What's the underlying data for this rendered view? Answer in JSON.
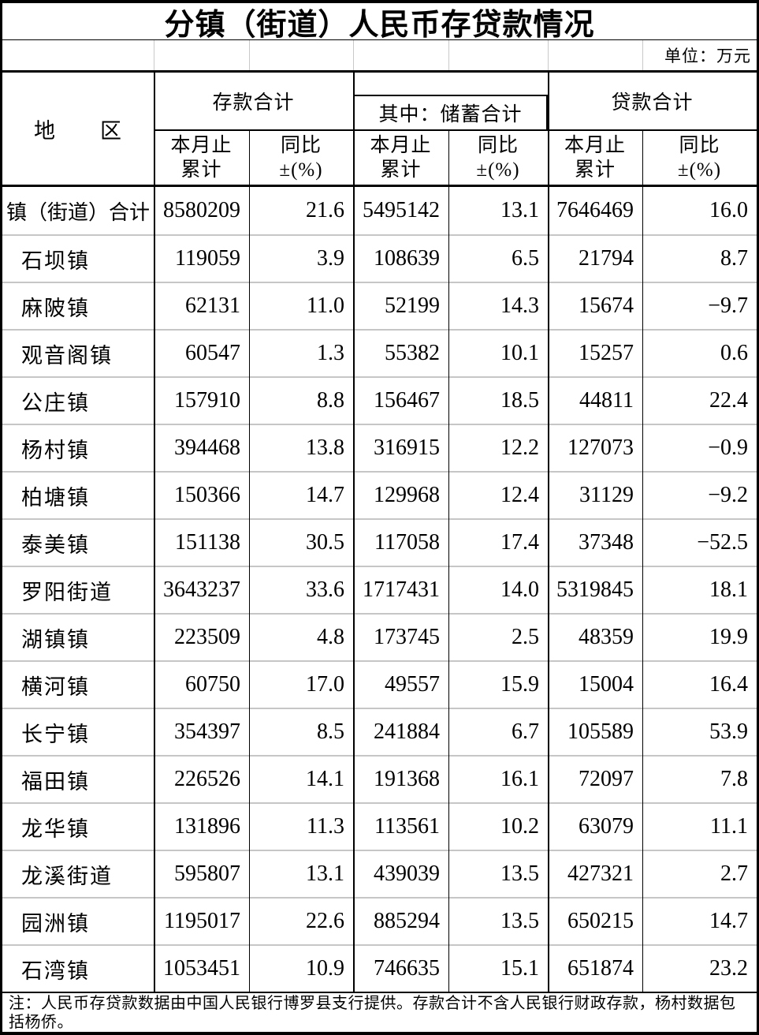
{
  "title": "分镇（街道）人民币存贷款情况",
  "unit_label": "单位：万元",
  "header": {
    "region_label": "地　　区",
    "groups": {
      "deposit": "存款合计",
      "savings": "其中：储蓄合计",
      "loan": "贷款合计"
    },
    "subcol": {
      "total_line1": "本月止",
      "total_line2": "累计",
      "yoy_line1": "同比",
      "yoy_line2": "±(%)"
    }
  },
  "rows": [
    {
      "region": "镇（街道）合计",
      "values": [
        "8580209",
        "21.6",
        "5495142",
        "13.1",
        "7646469",
        "16.0"
      ]
    },
    {
      "region": "石坝镇",
      "values": [
        "119059",
        "3.9",
        "108639",
        "6.5",
        "21794",
        "8.7"
      ]
    },
    {
      "region": "麻陂镇",
      "values": [
        "62131",
        "11.0",
        "52199",
        "14.3",
        "15674",
        "−9.7"
      ]
    },
    {
      "region": "观音阁镇",
      "values": [
        "60547",
        "1.3",
        "55382",
        "10.1",
        "15257",
        "0.6"
      ]
    },
    {
      "region": "公庄镇",
      "values": [
        "157910",
        "8.8",
        "156467",
        "18.5",
        "44811",
        "22.4"
      ]
    },
    {
      "region": "杨村镇",
      "values": [
        "394468",
        "13.8",
        "316915",
        "12.2",
        "127073",
        "−0.9"
      ]
    },
    {
      "region": "柏塘镇",
      "values": [
        "150366",
        "14.7",
        "129968",
        "12.4",
        "31129",
        "−9.2"
      ]
    },
    {
      "region": "泰美镇",
      "values": [
        "151138",
        "30.5",
        "117058",
        "17.4",
        "37348",
        "−52.5"
      ]
    },
    {
      "region": "罗阳街道",
      "values": [
        "3643237",
        "33.6",
        "1717431",
        "14.0",
        "5319845",
        "18.1"
      ]
    },
    {
      "region": "湖镇镇",
      "values": [
        "223509",
        "4.8",
        "173745",
        "2.5",
        "48359",
        "19.9"
      ]
    },
    {
      "region": "横河镇",
      "values": [
        "60750",
        "17.0",
        "49557",
        "15.9",
        "15004",
        "16.4"
      ]
    },
    {
      "region": "长宁镇",
      "values": [
        "354397",
        "8.5",
        "241884",
        "6.7",
        "105589",
        "53.9"
      ]
    },
    {
      "region": "福田镇",
      "values": [
        "226526",
        "14.1",
        "191368",
        "16.1",
        "72097",
        "7.8"
      ]
    },
    {
      "region": "龙华镇",
      "values": [
        "131896",
        "11.3",
        "113561",
        "10.2",
        "63079",
        "11.1"
      ]
    },
    {
      "region": "龙溪街道",
      "values": [
        "595807",
        "13.1",
        "439039",
        "13.5",
        "427321",
        "2.7"
      ]
    },
    {
      "region": "园洲镇",
      "values": [
        "1195017",
        "22.6",
        "885294",
        "13.5",
        "650215",
        "14.7"
      ]
    },
    {
      "region": "石湾镇",
      "values": [
        "1053451",
        "10.9",
        "746635",
        "15.1",
        "651874",
        "23.2"
      ]
    }
  ],
  "note": "注：人民币存贷款数据由中国人民银行博罗县支行提供。存款合计不含人民银行财政存款，杨村数据包括杨侨。"
}
